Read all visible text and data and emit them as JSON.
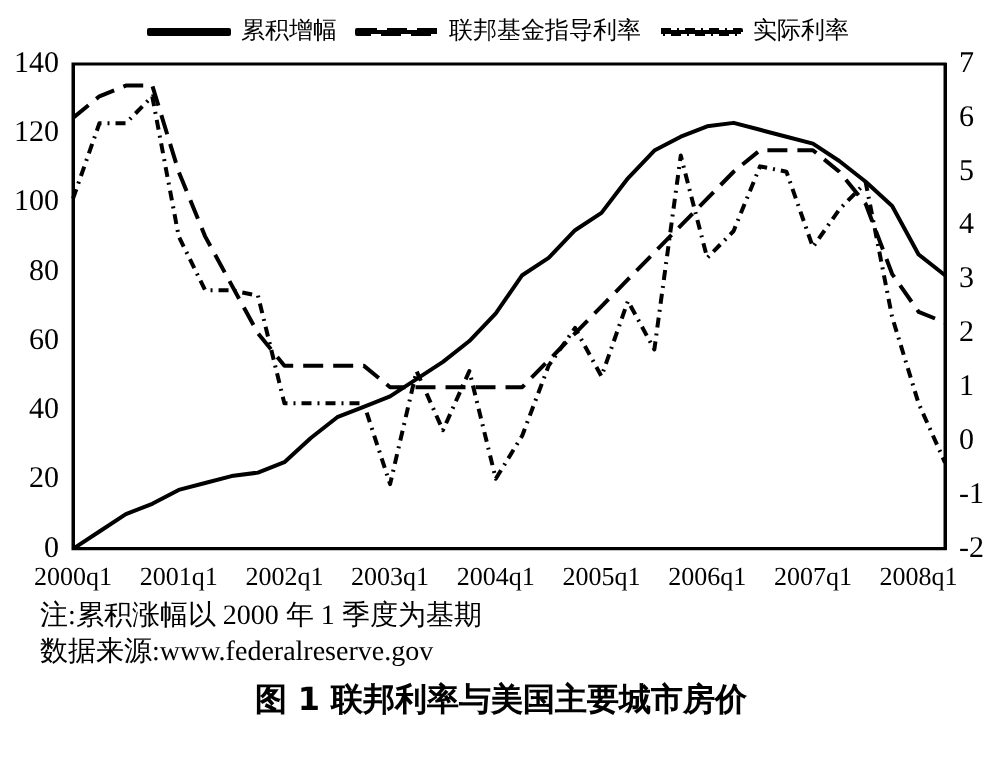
{
  "chart_data": {
    "type": "line",
    "title": "图 1 联邦利率与美国主要城市房价",
    "categories": [
      "2000q1",
      null,
      null,
      null,
      "2001q1",
      null,
      null,
      null,
      "2002q1",
      null,
      null,
      null,
      "2003q1",
      null,
      null,
      null,
      "2004q1",
      null,
      null,
      null,
      "2005q1",
      null,
      null,
      null,
      "2006q1",
      null,
      null,
      null,
      "2007q1",
      null,
      null,
      null,
      "2008q1",
      null
    ],
    "series": [
      {
        "name": "累积增幅",
        "color": "#000000",
        "line_style": "solid",
        "values": [
          0,
          5,
          10,
          13,
          17,
          19,
          21,
          22,
          25,
          32,
          38,
          41,
          44,
          49,
          54,
          60,
          68,
          79,
          84,
          92,
          97,
          107,
          115,
          119,
          122,
          123,
          121,
          119,
          117,
          112,
          106,
          99,
          85,
          79
        ]
      },
      {
        "name": "联邦基金指导利率",
        "color": "#000000",
        "line_style": "dashed",
        "axis": "y2",
        "values": [
          6.0,
          6.4,
          6.6,
          6.6,
          5.0,
          3.8,
          2.9,
          2.0,
          1.4,
          1.4,
          1.4,
          1.4,
          1.0,
          1.0,
          1.0,
          1.0,
          1.0,
          1.0,
          1.5,
          2.0,
          2.5,
          3.0,
          3.5,
          4.0,
          4.5,
          5.0,
          5.4,
          5.4,
          5.4,
          5.0,
          4.4,
          3.1,
          2.4,
          2.2
        ]
      },
      {
        "name": "实际利率",
        "color": "#000000",
        "line_style": "dotted",
        "axis": "y2",
        "values": [
          4.5,
          5.9,
          5.9,
          6.4,
          3.8,
          2.8,
          2.8,
          2.7,
          0.7,
          0.7,
          0.7,
          0.7,
          -0.8,
          1.3,
          0.2,
          1.3,
          -0.7,
          0.1,
          1.4,
          2.1,
          1.2,
          2.6,
          1.7,
          5.3,
          3.4,
          3.9,
          5.1,
          5.0,
          3.6,
          4.3,
          4.8,
          2.3,
          0.7,
          -0.4
        ]
      }
    ],
    "ylim": [
      0,
      140
    ],
    "yticks": [
      0,
      20,
      40,
      60,
      80,
      100,
      120,
      140
    ],
    "y2lim": [
      -2,
      7
    ],
    "y2ticks": [
      -2,
      -1,
      0,
      1,
      2,
      3,
      4,
      5,
      6,
      7
    ],
    "legend": "top",
    "grid": false,
    "marker": "none",
    "annotations": [
      "注:累积涨幅以 2000 年 1 季度为基期",
      "数据来源:www.federalreserve.gov"
    ]
  }
}
